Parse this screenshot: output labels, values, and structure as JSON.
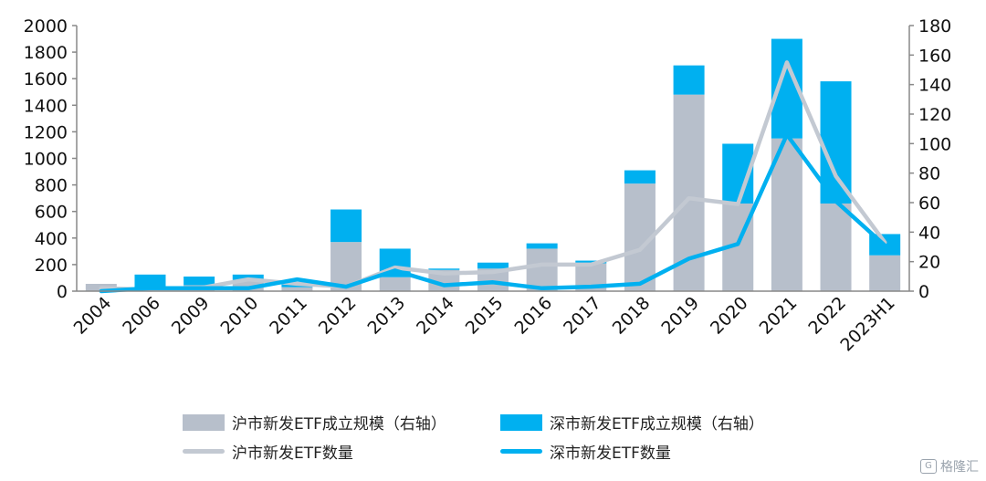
{
  "chart_data": {
    "type": "bar",
    "categories": [
      "2004",
      "2006",
      "2009",
      "2010",
      "2011",
      "2012",
      "2013",
      "2014",
      "2015",
      "2016",
      "2017",
      "2018",
      "2019",
      "2020",
      "2021",
      "2022",
      "2023H1"
    ],
    "left_axis": {
      "ylim": [
        0,
        2000
      ],
      "ticks": [
        0,
        200,
        400,
        600,
        800,
        1000,
        1200,
        1400,
        1600,
        1800,
        2000
      ]
    },
    "right_axis": {
      "ylim": [
        0,
        180
      ],
      "ticks": [
        0,
        20,
        40,
        60,
        80,
        100,
        120,
        140,
        160,
        180
      ]
    },
    "series": [
      {
        "name": "沪市新发ETF成立规模（右轴）",
        "kind": "stacked-bar",
        "axis": "left",
        "color": "#b7bfcb",
        "values": [
          55,
          0,
          45,
          85,
          30,
          370,
          105,
          160,
          170,
          320,
          210,
          810,
          1480,
          660,
          1150,
          660,
          270
        ]
      },
      {
        "name": "深市新发ETF成立规模（右轴）",
        "kind": "stacked-bar",
        "axis": "left",
        "color": "#00b0f0",
        "values": [
          0,
          125,
          65,
          40,
          30,
          245,
          215,
          10,
          45,
          40,
          20,
          100,
          220,
          450,
          750,
          920,
          160
        ]
      },
      {
        "name": "沪市新发ETF数量",
        "kind": "line",
        "axis": "right",
        "color": "#c3c9d2",
        "values": [
          2,
          1,
          2,
          8,
          5,
          3,
          16,
          12,
          13,
          18,
          18,
          28,
          63,
          59,
          155,
          78,
          33
        ]
      },
      {
        "name": "深市新发ETF数量",
        "kind": "line",
        "axis": "right",
        "color": "#00b0f0",
        "values": [
          0,
          2,
          2,
          2,
          8,
          3,
          14,
          4,
          6,
          2,
          3,
          5,
          22,
          32,
          106,
          61,
          31
        ]
      }
    ],
    "legend_position": "bottom",
    "grid": false
  },
  "watermark": {
    "icon": "G",
    "text": "格隆汇"
  }
}
